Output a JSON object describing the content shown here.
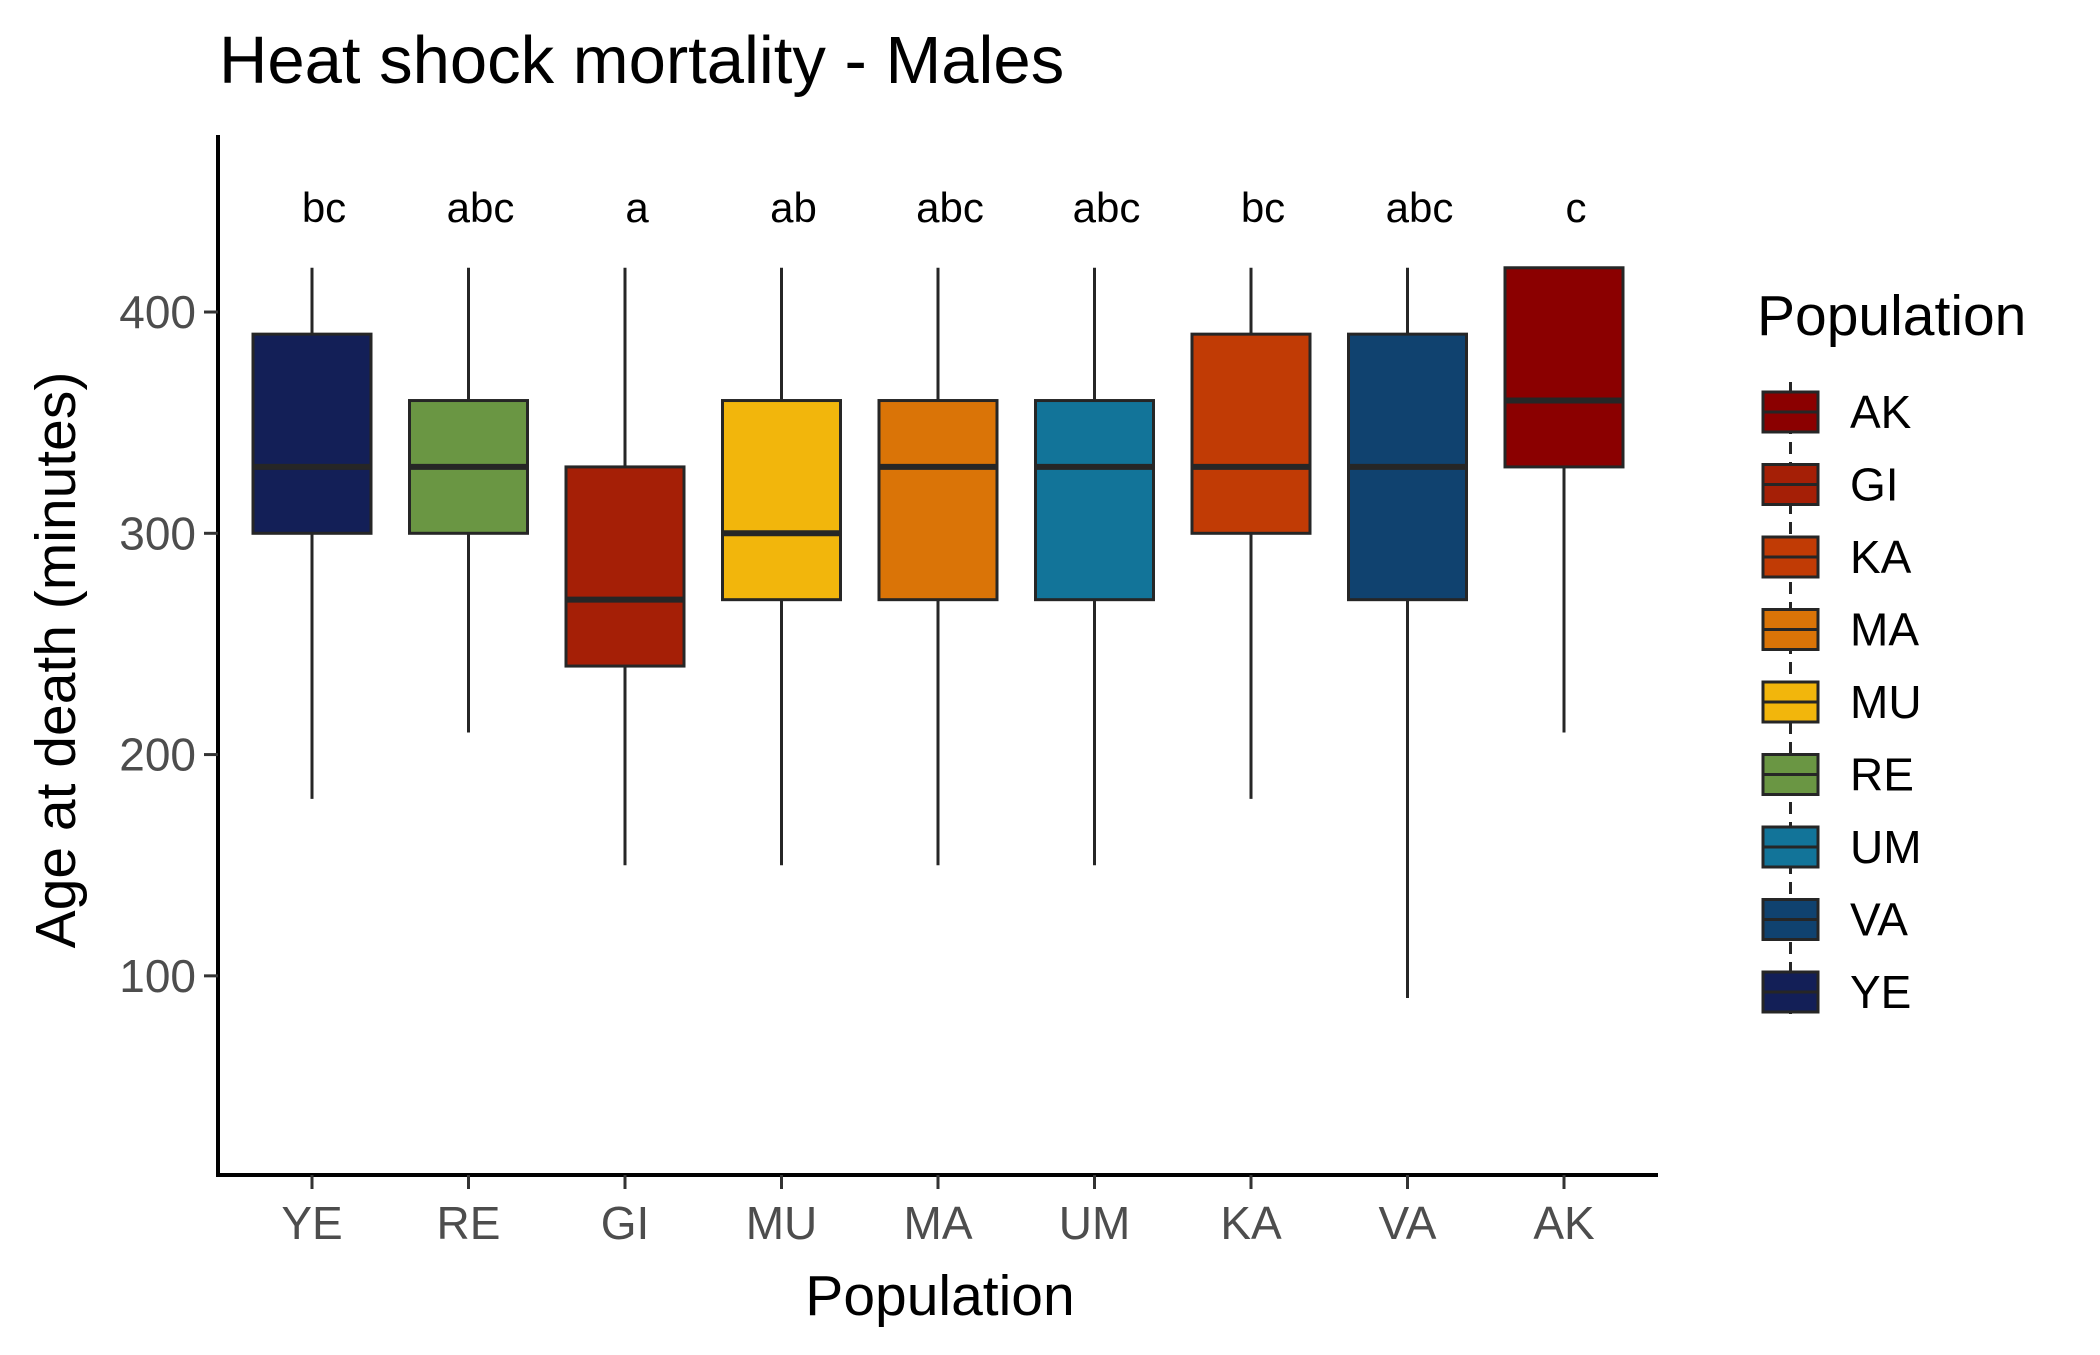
{
  "chart_data": {
    "type": "boxplot",
    "title": "Heat shock mortality - Males",
    "xlabel": "Population",
    "ylabel": "Age at death (minutes)",
    "ylim": [
      10,
      480
    ],
    "yticks": [
      100,
      200,
      300,
      400
    ],
    "grid": false,
    "legend": {
      "title": "Population",
      "position": "right",
      "entries": [
        "AK",
        "GI",
        "KA",
        "MA",
        "MU",
        "RE",
        "UM",
        "VA",
        "YE"
      ]
    },
    "categories": [
      "YE",
      "RE",
      "GI",
      "MU",
      "MA",
      "UM",
      "KA",
      "VA",
      "AK"
    ],
    "boxes": [
      {
        "name": "YE",
        "min": 180,
        "q1": 300,
        "median": 330,
        "q3": 390,
        "max": 420,
        "letters": "bc",
        "color": "#131F57"
      },
      {
        "name": "RE",
        "min": 210,
        "q1": 300,
        "median": 330,
        "q3": 360,
        "max": 420,
        "letters": "abc",
        "color": "#6A9643"
      },
      {
        "name": "GI",
        "min": 150,
        "q1": 240,
        "median": 270,
        "q3": 330,
        "max": 420,
        "letters": "a",
        "color": "#A51F06"
      },
      {
        "name": "MU",
        "min": 150,
        "q1": 270,
        "median": 300,
        "q3": 360,
        "max": 420,
        "letters": "ab",
        "color": "#F2B60C"
      },
      {
        "name": "MA",
        "min": 150,
        "q1": 270,
        "median": 330,
        "q3": 360,
        "max": 420,
        "letters": "abc",
        "color": "#DA7407"
      },
      {
        "name": "UM",
        "min": 150,
        "q1": 270,
        "median": 330,
        "q3": 360,
        "max": 420,
        "letters": "abc",
        "color": "#127499"
      },
      {
        "name": "KA",
        "min": 180,
        "q1": 300,
        "median": 330,
        "q3": 390,
        "max": 420,
        "letters": "bc",
        "color": "#C13B05"
      },
      {
        "name": "VA",
        "min": 90,
        "q1": 270,
        "median": 330,
        "q3": 390,
        "max": 420,
        "letters": "abc",
        "color": "#10426F"
      },
      {
        "name": "AK",
        "min": 210,
        "q1": 330,
        "median": 360,
        "q3": 420,
        "max": 420,
        "letters": "c",
        "color": "#8B0000"
      }
    ]
  }
}
